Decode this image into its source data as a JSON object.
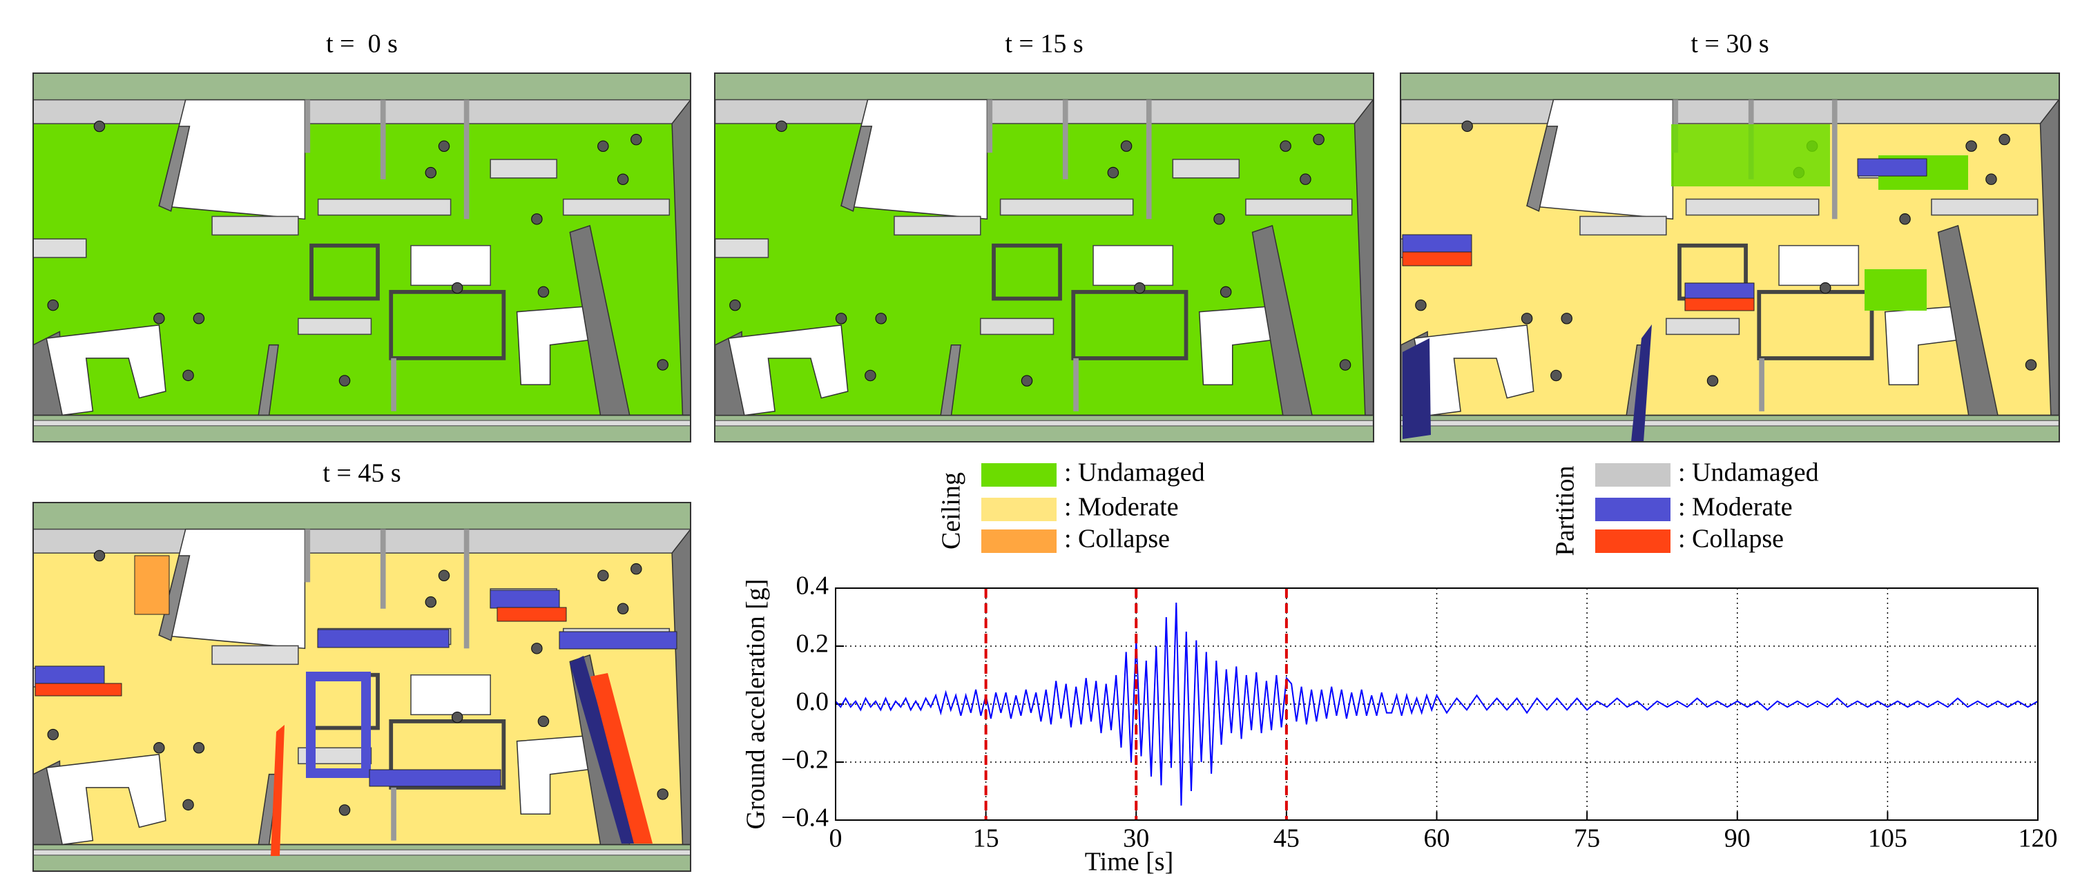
{
  "panels": [
    {
      "title": "t =  0 s"
    },
    {
      "title": "t = 15 s"
    },
    {
      "title": "t = 30 s"
    },
    {
      "title": "t = 45 s"
    }
  ],
  "legends": [
    {
      "title": "Ceiling",
      "items": [
        {
          "label": ": Undamaged",
          "color": "#6cdc00"
        },
        {
          "label": ": Moderate",
          "color": "#ffe680"
        },
        {
          "label": ": Collapse",
          "color": "#ffa640"
        }
      ]
    },
    {
      "title": "Partition",
      "items": [
        {
          "label": ": Undamaged",
          "color": "#c8c8c8"
        },
        {
          "label": ": Moderate",
          "color": "#5050d2"
        },
        {
          "label": ": Collapse",
          "color": "#ff4414"
        }
      ]
    }
  ],
  "chart_data": {
    "type": "line",
    "x_label": "Time [s]",
    "y_label": "Ground acceleration [g]",
    "color": "#0000ff",
    "marker_color": "#dd0000",
    "markers": [
      15,
      30,
      45
    ],
    "xlim": [
      0,
      120
    ],
    "xticks": [
      0,
      15,
      30,
      45,
      60,
      75,
      90,
      105,
      120
    ],
    "ylim": [
      -0.4,
      0.4
    ],
    "yticks": [
      {
        "value": -0.4,
        "label": "−0.4"
      },
      {
        "value": -0.2,
        "label": "−0.2"
      },
      {
        "value": 0,
        "label": "0.0"
      },
      0.2,
      0.4
    ],
    "grid": true,
    "x": [
      0,
      0.5,
      1,
      1.5,
      2,
      2.5,
      3,
      3.5,
      4,
      4.5,
      5,
      5.5,
      6,
      6.5,
      7,
      7.5,
      8,
      8.5,
      9,
      9.5,
      10,
      10.5,
      11,
      11.5,
      12,
      12.5,
      13,
      13.5,
      14,
      14.5,
      15,
      15.5,
      16,
      16.5,
      17,
      17.5,
      18,
      18.5,
      19,
      19.5,
      20,
      20.5,
      21,
      21.5,
      22,
      22.5,
      23,
      23.5,
      24,
      24.5,
      25,
      25.5,
      26,
      26.5,
      27,
      27.5,
      28,
      28.5,
      29,
      29.5,
      30,
      30.5,
      31,
      31.5,
      32,
      32.5,
      33,
      33.5,
      34,
      34.5,
      35,
      35.5,
      36,
      36.5,
      37,
      37.5,
      38,
      38.5,
      39,
      39.5,
      40,
      40.5,
      41,
      41.5,
      42,
      42.5,
      43,
      43.5,
      44,
      44.5,
      45,
      45.5,
      46,
      46.5,
      47,
      47.5,
      48,
      48.5,
      49,
      49.5,
      50,
      50.5,
      51,
      51.5,
      52,
      52.5,
      53,
      53.5,
      54,
      54.5,
      55,
      55.5,
      56,
      56.5,
      57,
      57.5,
      58,
      58.5,
      59,
      59.5,
      60,
      61,
      62,
      63,
      64,
      65,
      66,
      67,
      68,
      69,
      70,
      71,
      72,
      73,
      74,
      75,
      76,
      77,
      78,
      79,
      80,
      81,
      82,
      83,
      84,
      85,
      86,
      87,
      88,
      89,
      90,
      91,
      92,
      93,
      94,
      95,
      96,
      97,
      98,
      99,
      100,
      101,
      102,
      103,
      104,
      105,
      106,
      107,
      108,
      109,
      110,
      111,
      112,
      113,
      114,
      115,
      116,
      117,
      118,
      119,
      120
    ],
    "values": [
      0.01,
      -0.01,
      0.02,
      -0.01,
      0.01,
      -0.02,
      0.02,
      -0.01,
      0.01,
      -0.02,
      0.02,
      -0.02,
      0.01,
      -0.01,
      0.02,
      -0.02,
      0.01,
      -0.02,
      0.02,
      -0.01,
      0.03,
      -0.03,
      0.04,
      -0.02,
      0.03,
      -0.04,
      0.03,
      -0.03,
      0.05,
      -0.04,
      0.03,
      -0.05,
      0.04,
      -0.03,
      0.04,
      -0.05,
      0.03,
      -0.04,
      0.05,
      -0.03,
      0.04,
      -0.06,
      0.05,
      -0.07,
      0.08,
      -0.05,
      0.07,
      -0.08,
      0.06,
      -0.07,
      0.09,
      -0.06,
      0.08,
      -0.1,
      0.07,
      -0.09,
      0.1,
      -0.15,
      0.18,
      -0.2,
      0.22,
      -0.18,
      0.15,
      -0.25,
      0.2,
      -0.28,
      0.3,
      -0.22,
      0.35,
      -0.35,
      0.25,
      -0.3,
      0.22,
      -0.2,
      0.18,
      -0.24,
      0.15,
      -0.14,
      0.12,
      -0.1,
      0.13,
      -0.12,
      0.1,
      -0.09,
      0.11,
      -0.1,
      0.08,
      -0.09,
      0.1,
      -0.08,
      0.09,
      0.07,
      -0.06,
      0.06,
      -0.07,
      0.05,
      -0.06,
      0.05,
      -0.05,
      0.06,
      -0.04,
      0.05,
      -0.05,
      0.04,
      -0.04,
      0.05,
      -0.04,
      0.03,
      -0.04,
      0.04,
      -0.03,
      -0.03,
      0.03,
      -0.04,
      0.03,
      -0.03,
      0.02,
      -0.03,
      0.03,
      -0.02,
      0.03,
      -0.03,
      0.02,
      -0.02,
      0.03,
      -0.02,
      0.02,
      -0.02,
      0.02,
      -0.03,
      0.02,
      -0.02,
      0.02,
      -0.02,
      0.02,
      -0.02,
      0.01,
      -0.01,
      0.02,
      -0.01,
      0.01,
      -0.02,
      0.01,
      -0.01,
      0.01,
      -0.01,
      0.02,
      -0.01,
      0.01,
      -0.01,
      0.01,
      -0.01,
      0.01,
      -0.02,
      0.01,
      -0.01,
      0.01,
      -0.01,
      0.01,
      -0.01,
      0.02,
      -0.01,
      0.01,
      -0.01,
      0.01,
      -0.01,
      0.01,
      -0.01,
      0.01,
      -0.01,
      0.01,
      -0.01,
      0.02,
      -0.01,
      0.01,
      -0.01,
      0.01,
      -0.01,
      0.01,
      -0.01,
      0.01
    ]
  }
}
